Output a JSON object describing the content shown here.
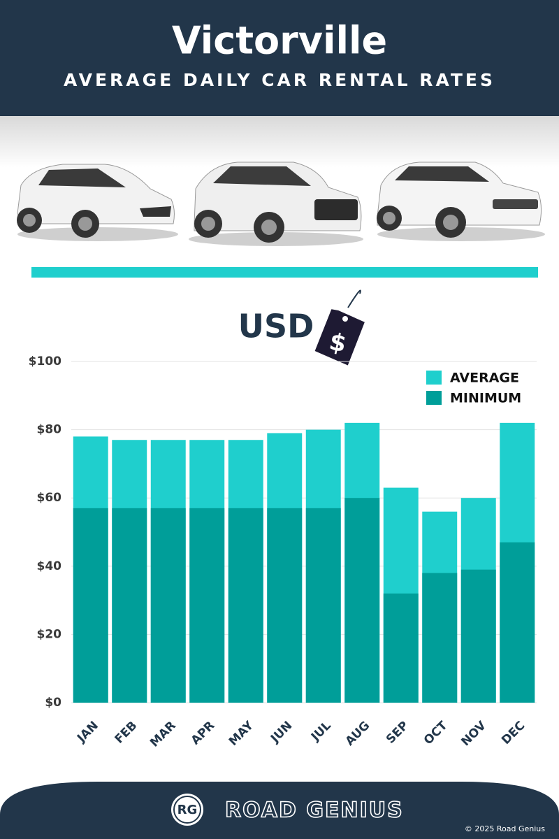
{
  "chart_data": {
    "type": "bar",
    "title": "Victorville",
    "subtitle": "AVERAGE DAILY CAR RENTAL RATES",
    "annotation": "USD",
    "tag_symbol": "$",
    "categories": [
      "JAN",
      "FEB",
      "MAR",
      "APR",
      "MAY",
      "JUN",
      "JUL",
      "AUG",
      "SEP",
      "OCT",
      "NOV",
      "DEC"
    ],
    "series": [
      {
        "name": "AVERAGE",
        "color": "#1fcfcd",
        "values": [
          78,
          77,
          77,
          77,
          77,
          79,
          80,
          82,
          63,
          56,
          60,
          82
        ]
      },
      {
        "name": "MINIMUM",
        "color": "#009e99",
        "values": [
          57,
          57,
          57,
          57,
          57,
          57,
          57,
          60,
          32,
          38,
          39,
          47
        ]
      }
    ],
    "ylim": [
      0,
      100
    ],
    "yticks": [
      {
        "value": 0,
        "label": "$0"
      },
      {
        "value": 20,
        "label": "$20"
      },
      {
        "value": 40,
        "label": "$40"
      },
      {
        "value": 60,
        "label": "$60"
      },
      {
        "value": 80,
        "label": "$80"
      },
      {
        "value": 100,
        "label": "$100"
      }
    ],
    "grid": true,
    "legend": "top-right"
  },
  "footer": {
    "logo": "RG",
    "brand": "ROAD GENIUS",
    "copyright": "© 2025 Road Genius"
  }
}
